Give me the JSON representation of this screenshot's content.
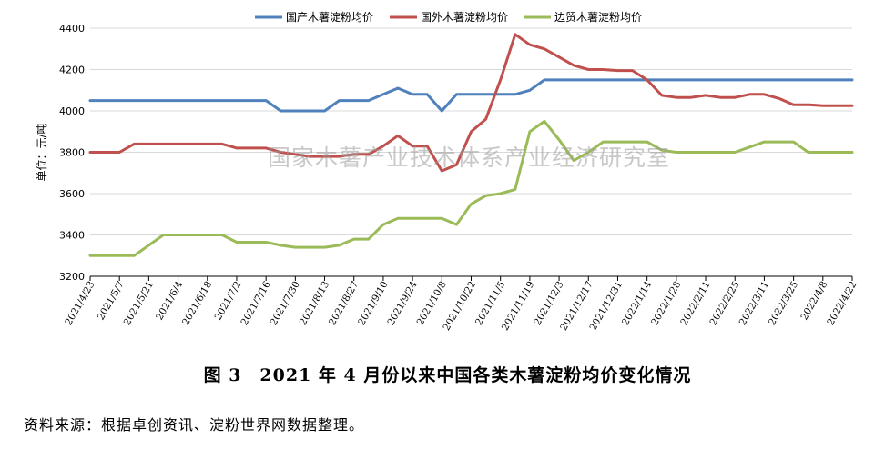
{
  "chart_data": {
    "type": "line",
    "ylabel": "单位：元/吨",
    "ylim": [
      3200,
      4400
    ],
    "yticks": [
      3200,
      3400,
      3600,
      3800,
      4000,
      4200,
      4400
    ],
    "grid": true,
    "legend_position": "top-center",
    "watermark": "国家木薯产业技术体系产业经济研究室",
    "x": [
      "2021/4/23",
      "2021/4/30",
      "2021/5/7",
      "2021/5/14",
      "2021/5/21",
      "2021/5/28",
      "2021/6/4",
      "2021/6/11",
      "2021/6/18",
      "2021/6/25",
      "2021/7/2",
      "2021/7/9",
      "2021/7/16",
      "2021/7/23",
      "2021/7/30",
      "2021/8/6",
      "2021/8/13",
      "2021/8/20",
      "2021/8/27",
      "2021/9/3",
      "2021/9/10",
      "2021/9/17",
      "2021/9/24",
      "2021/10/1",
      "2021/10/8",
      "2021/10/15",
      "2021/10/22",
      "2021/10/29",
      "2021/11/5",
      "2021/11/12",
      "2021/11/19",
      "2021/11/26",
      "2021/12/3",
      "2021/12/10",
      "2021/12/17",
      "2021/12/24",
      "2021/12/31",
      "2022/1/7",
      "2022/1/14",
      "2022/1/21",
      "2022/1/28",
      "2022/2/4",
      "2022/2/11",
      "2022/2/18",
      "2022/2/25",
      "2022/3/4",
      "2022/3/11",
      "2022/3/18",
      "2022/3/25",
      "2022/4/1",
      "2022/4/8",
      "2022/4/15",
      "2022/4/22"
    ],
    "xtick_labels": [
      "2021/4/23",
      "2021/5/7",
      "2021/5/21",
      "2021/6/4",
      "2021/6/18",
      "2021/7/2",
      "2021/7/16",
      "2021/7/30",
      "2021/8/13",
      "2021/8/27",
      "2021/9/10",
      "2021/9/24",
      "2021/10/8",
      "2021/10/22",
      "2021/11/5",
      "2021/11/19",
      "2021/12/3",
      "2021/12/17",
      "2021/12/31",
      "2022/1/14",
      "2022/1/28",
      "2022/2/11",
      "2022/2/25",
      "2022/3/11",
      "2022/3/25",
      "2022/4/8",
      "2022/4/22"
    ],
    "series": [
      {
        "name": "国产木薯淀粉均价",
        "color": "#4f81bd",
        "values": [
          4050,
          4050,
          4050,
          4050,
          4050,
          4050,
          4050,
          4050,
          4050,
          4050,
          4050,
          4050,
          4050,
          4000,
          4000,
          4000,
          4000,
          4050,
          4050,
          4050,
          4080,
          4110,
          4080,
          4080,
          4000,
          4080,
          4080,
          4080,
          4080,
          4080,
          4100,
          4150,
          4150,
          4150,
          4150,
          4150,
          4150,
          4150,
          4150,
          4150,
          4150,
          4150,
          4150,
          4150,
          4150,
          4150,
          4150,
          4150,
          4150,
          4150,
          4150,
          4150,
          4150
        ]
      },
      {
        "name": "国外木薯淀粉均价",
        "color": "#c0504d",
        "values": [
          3800,
          3800,
          3800,
          3840,
          3840,
          3840,
          3840,
          3840,
          3840,
          3840,
          3820,
          3820,
          3820,
          3800,
          3790,
          3780,
          3780,
          3780,
          3790,
          3790,
          3830,
          3880,
          3830,
          3830,
          3710,
          3740,
          3900,
          3960,
          4150,
          4370,
          4320,
          4300,
          4260,
          4220,
          4200,
          4200,
          4195,
          4195,
          4150,
          4075,
          4065,
          4065,
          4075,
          4065,
          4065,
          4080,
          4080,
          4060,
          4030,
          4030,
          4025,
          4025,
          4025
        ]
      },
      {
        "name": "边贸木薯淀粉均价",
        "color": "#9bbb59",
        "values": [
          3300,
          3300,
          3300,
          3300,
          3350,
          3400,
          3400,
          3400,
          3400,
          3400,
          3365,
          3365,
          3365,
          3350,
          3340,
          3340,
          3340,
          3350,
          3380,
          3380,
          3450,
          3480,
          3480,
          3480,
          3480,
          3450,
          3550,
          3590,
          3600,
          3620,
          3900,
          3950,
          3860,
          3760,
          3800,
          3850,
          3850,
          3850,
          3850,
          3810,
          3800,
          3800,
          3800,
          3800,
          3800,
          3825,
          3850,
          3850,
          3850,
          3800,
          3800,
          3800,
          3800
        ]
      }
    ]
  },
  "caption": "图 3　2021 年 4 月份以来中国各类木薯淀粉均价变化情况",
  "source": "资料来源：根据卓创资讯、淀粉世界网数据整理。"
}
